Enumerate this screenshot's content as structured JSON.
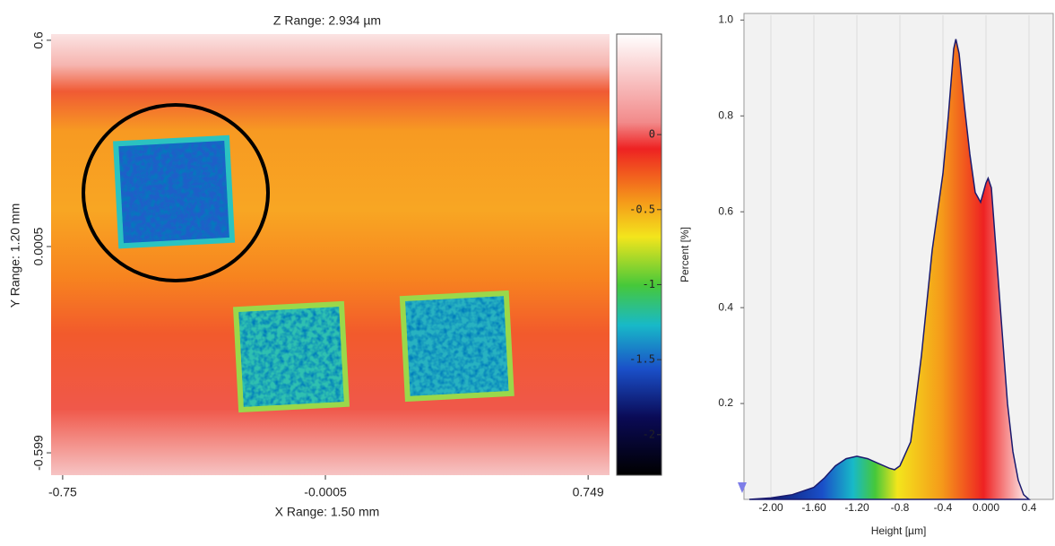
{
  "chart_data": [
    {
      "type": "heatmap",
      "title": "Z Range: 2.934 µm",
      "xlabel": "X Range: 1.50 mm",
      "ylabel": "Y Range: 1.20 mm",
      "xlim": [
        -0.783,
        0.81
      ],
      "xticks": [
        -0.75,
        -0.0005,
        0.749
      ],
      "ylim": [
        -0.664,
        0.618
      ],
      "yticks": [
        0.6,
        0.0005,
        -0.599
      ],
      "colorbar_label": "Percent [%]",
      "clim": [
        -2.27,
        0.67
      ],
      "cticks": [
        0,
        -0.5,
        -1,
        -1.5,
        -2
      ]
    },
    {
      "type": "area",
      "xlabel": "Height [µm]",
      "x": [
        -2.2,
        -2.0,
        -1.8,
        -1.6,
        -1.5,
        -1.4,
        -1.3,
        -1.2,
        -1.1,
        -1.0,
        -0.9,
        -0.85,
        -0.8,
        -0.7,
        -0.6,
        -0.5,
        -0.45,
        -0.4,
        -0.35,
        -0.3,
        -0.28,
        -0.25,
        -0.2,
        -0.15,
        -0.1,
        -0.05,
        0.0,
        0.02,
        0.05,
        0.1,
        0.15,
        0.2,
        0.25,
        0.3,
        0.35,
        0.4
      ],
      "values": [
        0,
        0.003,
        0.01,
        0.025,
        0.045,
        0.07,
        0.085,
        0.09,
        0.085,
        0.075,
        0.065,
        0.062,
        0.07,
        0.12,
        0.3,
        0.52,
        0.6,
        0.68,
        0.8,
        0.94,
        0.96,
        0.93,
        0.82,
        0.72,
        0.64,
        0.62,
        0.66,
        0.67,
        0.65,
        0.5,
        0.35,
        0.2,
        0.1,
        0.04,
        0.01,
        0
      ],
      "color": "#1a1a6e",
      "xlim": [
        -2.25,
        0.625
      ],
      "xticks": [
        {
          "value": -2,
          "label": "-2.00"
        },
        {
          "value": -1.6,
          "label": "-1.60"
        },
        {
          "value": -1.2,
          "label": "-1.20"
        },
        {
          "value": -0.8,
          "label": "-0.8"
        },
        {
          "value": -0.4,
          "label": "-0.4"
        },
        {
          "value": 0,
          "label": "0.000"
        },
        {
          "value": 0.4,
          "label": "0.4"
        }
      ],
      "ylim": [
        0,
        1.01
      ],
      "yticks": [
        0.2,
        0.4,
        0.6,
        0.8,
        {
          "value": 1,
          "label": "1.0"
        }
      ],
      "grid": true
    }
  ]
}
